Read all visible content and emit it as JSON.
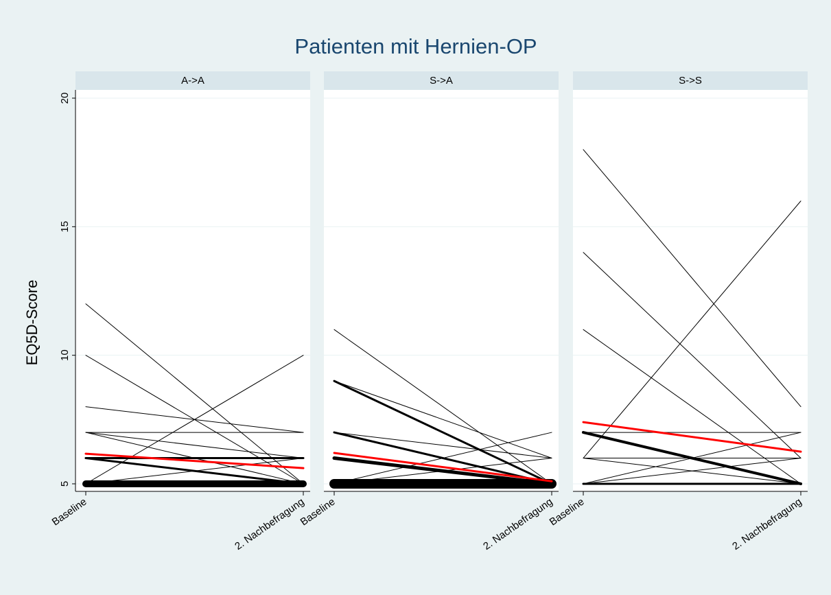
{
  "title": "Patienten mit Hernien-OP",
  "y_label": "EQ5D-Score",
  "chart_data": [
    {
      "type": "line",
      "title": "A->A",
      "categories": [
        "Baseline",
        "2. Nachbefragung"
      ],
      "ylim": [
        5,
        20
      ],
      "yticks": [
        5,
        10,
        15,
        20
      ],
      "grid": true,
      "series": [
        {
          "color": "#000000",
          "width": 1,
          "values": [
            12,
            5
          ]
        },
        {
          "color": "#000000",
          "width": 1,
          "values": [
            10,
            5
          ]
        },
        {
          "color": "#000000",
          "width": 1,
          "values": [
            8,
            7
          ]
        },
        {
          "color": "#000000",
          "width": 1,
          "values": [
            7,
            7
          ]
        },
        {
          "color": "#000000",
          "width": 1,
          "values": [
            7,
            6
          ]
        },
        {
          "color": "#000000",
          "width": 1,
          "values": [
            7,
            5
          ]
        },
        {
          "color": "#000000",
          "width": 1,
          "values": [
            5,
            10
          ]
        },
        {
          "color": "#000000",
          "width": 1,
          "values": [
            5,
            6
          ]
        },
        {
          "color": "#000000",
          "width": 3,
          "values": [
            6,
            6
          ]
        },
        {
          "color": "#000000",
          "width": 3,
          "values": [
            6,
            5
          ]
        },
        {
          "color": "#000000",
          "width": 10,
          "values": [
            5,
            5
          ]
        },
        {
          "color": "#ff0000",
          "width": 3,
          "values": [
            6.17,
            5.61
          ]
        }
      ]
    },
    {
      "type": "line",
      "title": "S->A",
      "categories": [
        "Baseline",
        "2. Nachbefragung"
      ],
      "ylim": [
        5,
        20
      ],
      "yticks": [
        5,
        10,
        15,
        20
      ],
      "grid": true,
      "series": [
        {
          "color": "#000000",
          "width": 1,
          "values": [
            11,
            5
          ]
        },
        {
          "color": "#000000",
          "width": 1,
          "values": [
            9,
            6
          ]
        },
        {
          "color": "#000000",
          "width": 3,
          "values": [
            9,
            5
          ]
        },
        {
          "color": "#000000",
          "width": 1,
          "values": [
            7,
            6
          ]
        },
        {
          "color": "#000000",
          "width": 3,
          "values": [
            7,
            5
          ]
        },
        {
          "color": "#000000",
          "width": 5,
          "values": [
            6,
            5
          ]
        },
        {
          "color": "#000000",
          "width": 1,
          "values": [
            5,
            7
          ]
        },
        {
          "color": "#000000",
          "width": 1,
          "values": [
            5,
            6
          ]
        },
        {
          "color": "#000000",
          "width": 14,
          "values": [
            5,
            5
          ]
        },
        {
          "color": "#ff0000",
          "width": 3,
          "values": [
            6.2,
            5.1
          ]
        }
      ]
    },
    {
      "type": "line",
      "title": "S->S",
      "categories": [
        "Baseline",
        "2. Nachbefragung"
      ],
      "ylim": [
        5,
        20
      ],
      "yticks": [
        5,
        10,
        15,
        20
      ],
      "grid": true,
      "series": [
        {
          "color": "#000000",
          "width": 1,
          "values": [
            18,
            8
          ]
        },
        {
          "color": "#000000",
          "width": 1,
          "values": [
            14,
            6
          ]
        },
        {
          "color": "#000000",
          "width": 1,
          "values": [
            11,
            5
          ]
        },
        {
          "color": "#000000",
          "width": 1,
          "values": [
            6,
            16
          ]
        },
        {
          "color": "#000000",
          "width": 1,
          "values": [
            7,
            7
          ]
        },
        {
          "color": "#000000",
          "width": 1,
          "values": [
            6,
            6
          ]
        },
        {
          "color": "#000000",
          "width": 1,
          "values": [
            6,
            5
          ]
        },
        {
          "color": "#000000",
          "width": 1,
          "values": [
            5,
            7
          ]
        },
        {
          "color": "#000000",
          "width": 1,
          "values": [
            5,
            6
          ]
        },
        {
          "color": "#000000",
          "width": 4,
          "values": [
            7,
            5
          ]
        },
        {
          "color": "#000000",
          "width": 3,
          "values": [
            5,
            5
          ]
        },
        {
          "color": "#ff0000",
          "width": 3,
          "values": [
            7.4,
            6.25
          ]
        }
      ]
    }
  ]
}
